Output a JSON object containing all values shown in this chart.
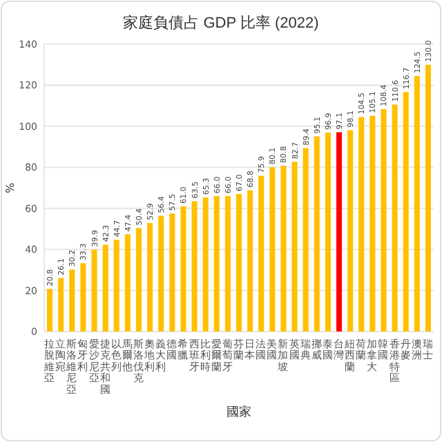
{
  "chart_data": {
    "type": "bar",
    "title": "家庭負債占 GDP 比率 (2022)",
    "xlabel": "國家",
    "ylabel": "%",
    "categories": [
      "拉脫維亞",
      "立陶宛",
      "斯洛維尼亞",
      "匈牙利",
      "愛沙尼亞",
      "捷克共和國",
      "以色列",
      "馬爾他",
      "斯洛伐克",
      "奧地利",
      "義大利",
      "德國",
      "希臘",
      "西班牙",
      "比利時",
      "愛爾蘭",
      "葡萄牙",
      "芬蘭",
      "日本",
      "法國",
      "美國",
      "新加坡",
      "英國",
      "瑞典",
      "挪威",
      "泰國",
      "台灣",
      "紐西蘭",
      "荷蘭",
      "加拿大",
      "韓國",
      "香港特區",
      "丹麥",
      "澳洲",
      "瑞士"
    ],
    "values": [
      20.8,
      26.1,
      30.2,
      33.3,
      39.9,
      42.3,
      44.7,
      47.4,
      50.4,
      52.9,
      56.4,
      57.5,
      61.0,
      63.5,
      65.3,
      66.0,
      66.0,
      67.0,
      68.8,
      75.9,
      80.1,
      80.8,
      82.7,
      89.4,
      95.1,
      96.9,
      97.1,
      98.1,
      104.5,
      105.1,
      108.4,
      110.6,
      116.7,
      124.5,
      130.0
    ],
    "value_labels": [
      "20.8",
      "26.1",
      "30.2",
      "33.3",
      "39.9",
      "42.3",
      "44.7",
      "47.4",
      "50.4",
      "52.9",
      "56.4",
      "57.5",
      "61.0",
      "63.5",
      "65.3",
      "66.0",
      "66.0",
      "67.0",
      "68.8",
      "75.9",
      "80.1",
      "80.8",
      "82.7",
      "89.4",
      "95.1",
      "96.9",
      "97.1",
      "98.1",
      "104.5",
      "105.1",
      "108.4",
      "110.6",
      "116.7",
      "124.5",
      "130.0"
    ],
    "colors": [
      "#ffc000",
      "#ffc000",
      "#ffc000",
      "#ffc000",
      "#ffc000",
      "#ffc000",
      "#ffc000",
      "#ffc000",
      "#ffc000",
      "#ffc000",
      "#ffc000",
      "#ffc000",
      "#ffc000",
      "#ffc000",
      "#ffc000",
      "#ffc000",
      "#ffc000",
      "#ffc000",
      "#ffc000",
      "#ffc000",
      "#ffc000",
      "#ffc000",
      "#ffc000",
      "#ffc000",
      "#ffc000",
      "#ffc000",
      "#ff0000",
      "#ffc000",
      "#ffc000",
      "#ffc000",
      "#ffc000",
      "#ffc000",
      "#ffc000",
      "#ffc000",
      "#ffc000"
    ],
    "ylim": [
      0,
      140
    ],
    "yticks": [
      0,
      20,
      40,
      60,
      80,
      100,
      120,
      140
    ],
    "grid": "y"
  }
}
